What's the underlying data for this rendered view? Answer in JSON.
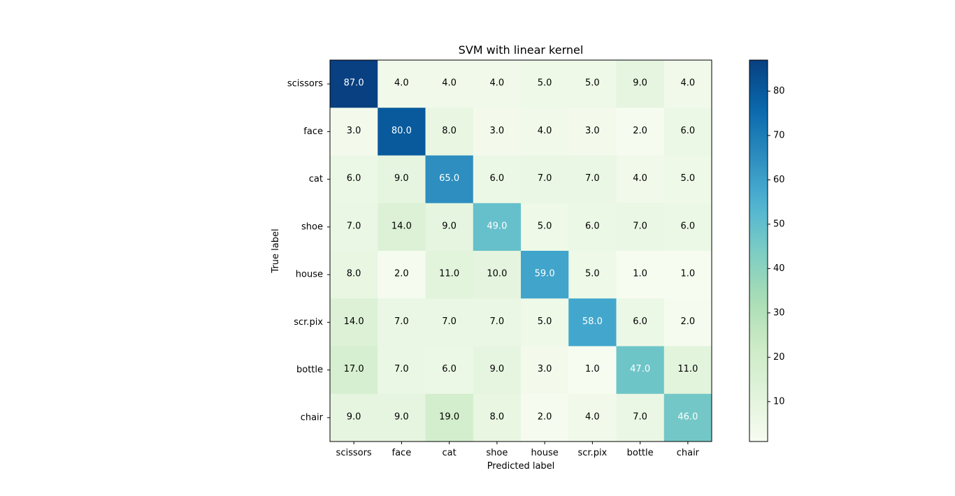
{
  "chart_data": {
    "type": "heatmap",
    "title": "SVM with linear kernel",
    "xlabel": "Predicted label",
    "ylabel": "True label",
    "x_categories": [
      "scissors",
      "face",
      "cat",
      "shoe",
      "house",
      "scr.pix",
      "bottle",
      "chair"
    ],
    "y_categories": [
      "scissors",
      "face",
      "cat",
      "shoe",
      "house",
      "scr.pix",
      "bottle",
      "chair"
    ],
    "values": [
      [
        87,
        4,
        4,
        4,
        5,
        5,
        9,
        4
      ],
      [
        3,
        80,
        8,
        3,
        4,
        3,
        2,
        6
      ],
      [
        6,
        9,
        65,
        6,
        7,
        7,
        4,
        5
      ],
      [
        7,
        14,
        9,
        49,
        5,
        6,
        7,
        6
      ],
      [
        8,
        2,
        11,
        10,
        59,
        5,
        1,
        1
      ],
      [
        14,
        7,
        7,
        7,
        5,
        58,
        6,
        2
      ],
      [
        17,
        7,
        6,
        9,
        3,
        1,
        47,
        11
      ],
      [
        9,
        9,
        19,
        8,
        2,
        4,
        7,
        46
      ]
    ],
    "value_format": "0.0",
    "colormap": "GnBu",
    "color_range": [
      1,
      87
    ],
    "colorbar_ticks": [
      10,
      20,
      30,
      40,
      50,
      60,
      70,
      80
    ],
    "text_color_dark": "#000000",
    "text_color_light": "#ffffff"
  }
}
